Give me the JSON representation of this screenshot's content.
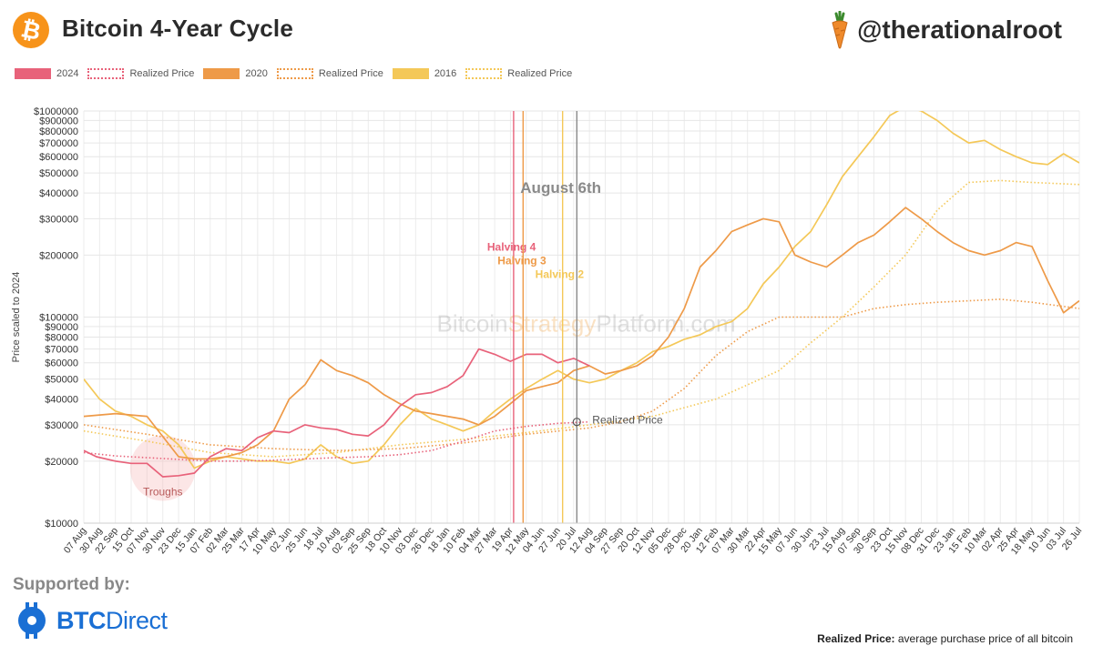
{
  "header": {
    "title": "Bitcoin 4-Year Cycle",
    "handle": "@therationalroot"
  },
  "legend": [
    {
      "label": "2024",
      "color": "#e8627a",
      "style": "solid"
    },
    {
      "label": "Realized Price",
      "color": "#e8627a",
      "style": "dotted"
    },
    {
      "label": "2020",
      "color": "#ee9a48",
      "style": "solid"
    },
    {
      "label": "Realized Price",
      "color": "#ee9a48",
      "style": "dotted"
    },
    {
      "label": "2016",
      "color": "#f4c858",
      "style": "solid"
    },
    {
      "label": "Realized Price",
      "color": "#f4c858",
      "style": "dotted"
    }
  ],
  "chart_data": {
    "type": "line",
    "yscale": "log",
    "ylabel": "Price scaled to 2024",
    "ylim": [
      10000,
      1000000
    ],
    "yticks": [
      10000,
      20000,
      30000,
      40000,
      50000,
      60000,
      70000,
      80000,
      90000,
      100000,
      200000,
      300000,
      400000,
      500000,
      600000,
      700000,
      800000,
      900000,
      1000000
    ],
    "ytick_labels": [
      "$10000",
      "$20000",
      "$30000",
      "$40000",
      "$50000",
      "$60000",
      "$70000",
      "$80000",
      "$90000",
      "$100000",
      "$200000",
      "$300000",
      "$400000",
      "$500000",
      "$600000",
      "$700000",
      "$800000",
      "$900000",
      "$1000000"
    ],
    "xtick_labels": [
      "07 Aug",
      "30 Aug",
      "22 Sep",
      "15 Oct",
      "07 Nov",
      "30 Nov",
      "23 Dec",
      "15 Jan",
      "07 Feb",
      "02 Mar",
      "25 Mar",
      "17 Apr",
      "10 May",
      "02 Jun",
      "25 Jun",
      "18 Jul",
      "10 Aug",
      "02 Sep",
      "25 Sep",
      "18 Oct",
      "10 Nov",
      "03 Dec",
      "26 Dec",
      "18 Jan",
      "10 Feb",
      "04 Mar",
      "27 Mar",
      "19 Apr",
      "12 May",
      "04 Jun",
      "27 Jun",
      "20 Jul",
      "12 Aug",
      "04 Sep",
      "27 Sep",
      "20 Oct",
      "12 Nov",
      "05 Dec",
      "28 Dec",
      "20 Jan",
      "12 Feb",
      "07 Mar",
      "30 Mar",
      "22 Apr",
      "15 May",
      "07 Jun",
      "30 Jun",
      "23 Jul",
      "15 Aug",
      "07 Sep",
      "30 Sep",
      "23 Oct",
      "15 Nov",
      "08 Dec",
      "31 Dec",
      "23 Jan",
      "15 Feb",
      "10 Mar",
      "02 Apr",
      "25 Apr",
      "18 May",
      "10 Jun",
      "03 Jul",
      "26 Jul"
    ],
    "series": [
      {
        "name": "2024",
        "color": "#e8627a",
        "style": "solid",
        "x": [
          0,
          0.8,
          2,
          3,
          4,
          5,
          6,
          7,
          8,
          9,
          10,
          11,
          12,
          13,
          14,
          15,
          16,
          17,
          18,
          19,
          20,
          21,
          22,
          23,
          24,
          25,
          26,
          27,
          28,
          29,
          30,
          31,
          32
        ],
        "values": [
          22500,
          21000,
          20000,
          19500,
          19500,
          16800,
          17000,
          17500,
          21000,
          23000,
          22500,
          26000,
          28000,
          27500,
          30000,
          29000,
          28500,
          27000,
          26500,
          30000,
          37000,
          42000,
          43000,
          46000,
          52000,
          70000,
          66000,
          61000,
          66000,
          66000,
          60000,
          63000,
          58000
        ]
      },
      {
        "name": "Realized Price",
        "color": "#e8627a",
        "style": "dotted",
        "x": [
          0,
          2,
          4,
          6,
          8,
          10,
          12,
          14,
          16,
          18,
          20,
          22,
          24,
          26,
          28,
          30,
          32
        ],
        "values": [
          22000,
          21200,
          20800,
          20400,
          20000,
          20000,
          20200,
          20500,
          20800,
          21000,
          21500,
          22500,
          25000,
          28000,
          29500,
          30500,
          31000
        ]
      },
      {
        "name": "2020",
        "color": "#ee9a48",
        "style": "solid",
        "x": [
          0,
          2,
          4,
          6,
          7,
          8,
          9,
          10,
          11,
          12,
          13,
          14,
          15,
          16,
          17,
          18,
          19,
          20,
          21,
          22,
          23,
          24,
          25,
          26,
          27,
          28,
          29,
          30,
          31,
          32,
          33,
          34,
          35,
          36,
          37,
          38,
          39,
          40,
          41,
          42,
          43,
          44,
          45,
          46,
          47,
          48,
          49,
          50,
          51,
          52,
          53,
          54,
          55,
          56,
          57,
          58,
          59,
          60,
          61,
          62,
          63
        ],
        "values": [
          33000,
          34000,
          33000,
          21000,
          20500,
          20500,
          21000,
          22000,
          24000,
          28000,
          40000,
          47000,
          62000,
          55000,
          52000,
          48000,
          42000,
          38000,
          35000,
          34000,
          33000,
          32000,
          30000,
          33000,
          38000,
          44000,
          46000,
          48000,
          55000,
          58000,
          53000,
          55000,
          58000,
          65000,
          80000,
          110000,
          175000,
          210000,
          260000,
          280000,
          300000,
          290000,
          200000,
          185000,
          175000,
          200000,
          230000,
          250000,
          290000,
          340000,
          300000,
          260000,
          230000,
          210000,
          200000,
          210000,
          230000,
          220000,
          150000,
          105000,
          120000
        ]
      },
      {
        "name": "Realized Price",
        "color": "#ee9a48",
        "style": "dotted",
        "x": [
          0,
          4,
          8,
          12,
          16,
          20,
          24,
          28,
          32,
          34,
          36,
          38,
          40,
          42,
          44,
          46,
          48,
          50,
          52,
          54,
          56,
          58,
          60,
          63
        ],
        "values": [
          30000,
          27000,
          24000,
          23000,
          22500,
          23000,
          24500,
          27000,
          29000,
          31000,
          35000,
          45000,
          65000,
          85000,
          100000,
          100000,
          100000,
          110000,
          115000,
          118000,
          120000,
          122000,
          118000,
          110000
        ]
      },
      {
        "name": "2016",
        "color": "#f4c858",
        "style": "solid",
        "x": [
          0,
          1,
          2,
          3,
          4,
          5,
          6,
          7,
          8,
          9,
          10,
          11,
          12,
          13,
          14,
          15,
          16,
          17,
          18,
          19,
          20,
          21,
          22,
          23,
          24,
          25,
          26,
          27,
          28,
          29,
          30,
          31,
          32,
          33,
          34,
          35,
          36,
          37,
          38,
          39,
          40,
          41,
          42,
          43,
          44,
          45,
          46,
          47,
          48,
          49,
          50,
          51,
          52,
          53,
          54,
          55,
          56,
          57,
          58,
          59,
          60,
          61,
          62,
          63
        ],
        "values": [
          50000,
          40000,
          35000,
          33000,
          30000,
          28000,
          24000,
          18500,
          20000,
          21000,
          20500,
          20000,
          20000,
          19500,
          20500,
          24000,
          21000,
          19500,
          20000,
          24000,
          30000,
          36000,
          32000,
          30000,
          28000,
          30000,
          35000,
          40000,
          45000,
          50000,
          55000,
          50000,
          48000,
          50000,
          55000,
          60000,
          68000,
          72000,
          78000,
          82000,
          90000,
          95000,
          110000,
          145000,
          175000,
          220000,
          260000,
          350000,
          480000,
          600000,
          750000,
          950000,
          1050000,
          1000000,
          900000,
          780000,
          700000,
          720000,
          650000,
          600000,
          560000,
          550000,
          620000,
          560000
        ]
      },
      {
        "name": "Realized Price",
        "color": "#f4c858",
        "style": "dotted",
        "x": [
          0,
          4,
          8,
          12,
          16,
          20,
          24,
          28,
          32,
          36,
          40,
          44,
          46,
          48,
          50,
          52,
          54,
          56,
          58,
          60,
          63
        ],
        "values": [
          28000,
          25000,
          22000,
          21000,
          22000,
          24000,
          25500,
          27500,
          30000,
          33000,
          40000,
          55000,
          75000,
          100000,
          140000,
          200000,
          330000,
          450000,
          460000,
          450000,
          440000
        ]
      }
    ],
    "vlines": [
      {
        "label": "Halving 4",
        "x": 27.2,
        "color": "#e8627a"
      },
      {
        "label": "Halving 3",
        "x": 27.8,
        "color": "#ee9a48"
      },
      {
        "label": "Halving 2",
        "x": 30.3,
        "color": "#f4c858"
      },
      {
        "label": "August 6th",
        "x": 31.2,
        "color": "#8a8a8a"
      }
    ],
    "annotations": {
      "realized_marker": {
        "label": "Realized Price",
        "x": 31.2,
        "y": 31000
      },
      "troughs": {
        "label": "Troughs",
        "x": 5,
        "y": 18500
      },
      "watermark": [
        "Bitcoin",
        "Strategy",
        "Platform.com"
      ]
    }
  },
  "footer": {
    "supported_by": "Supported by:",
    "sponsor_bold": "BTC",
    "sponsor_rest": "Direct",
    "footnote_bold": "Realized Price:",
    "footnote_rest": " average purchase price of all bitcoin"
  }
}
